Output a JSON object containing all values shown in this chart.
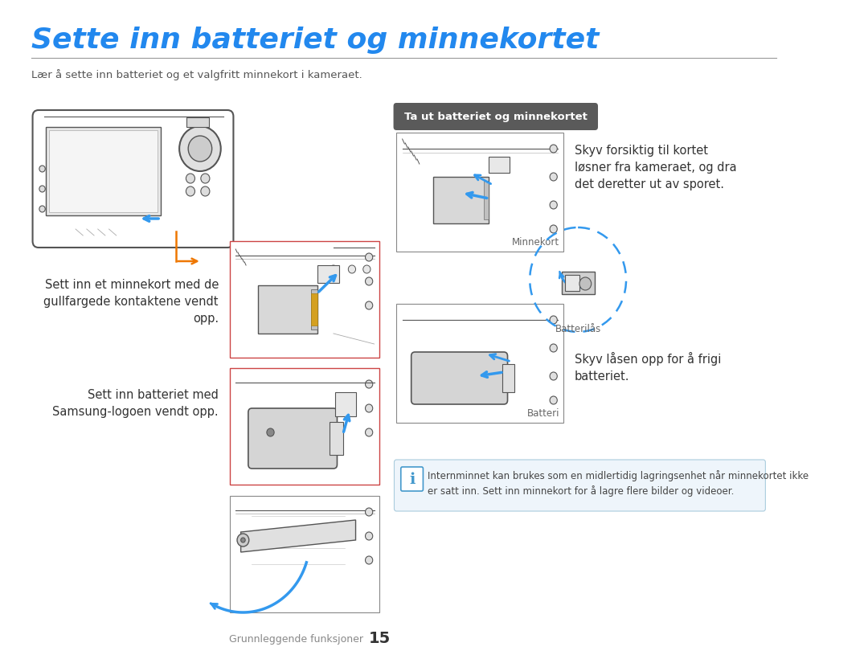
{
  "title": "Sette inn batteriet og minnekortet",
  "subtitle": "Lær å sette inn batteriet og et valgfritt minnekort i kameraet.",
  "title_color": "#2288EE",
  "subtitle_color": "#555555",
  "separator_color": "#999999",
  "bg_color": "#ffffff",
  "body_text_color": "#333333",
  "label_color": "#666666",
  "section2_label": "Ta ut batteriet og minnekortet",
  "section2_label_bg": "#5a5a5a",
  "section2_label_text": "#ffffff",
  "text_left1": "Sett inn et minnekort med de\ngullfargede kontaktene vendt\nopp.",
  "text_left2": "Sett inn batteriet med\nSamsung-logoen vendt opp.",
  "text_right1": "Skyv forsiktig til kortet\nløsner fra kameraet, og dra\ndet deretter ut av sporet.",
  "text_right2": "Skyv låsen opp for å frigi\nbatteriet.",
  "label_minnekort": "Minnekort",
  "label_batterilås": "Batterilås",
  "label_batteri": "Batteri",
  "note_text": "Internminnet kan brukes som en midlertidig lagringsenhet når minnekortet ikke\ner satt inn. Sett inn minnekort for å lagre flere bilder og videoer.",
  "note_icon_color": "#4499CC",
  "note_bg": "#eef5fb",
  "note_border": "#aaccdd",
  "footer_text": "Grunnleggende funksjoner",
  "footer_number": "15",
  "footer_color": "#888888",
  "blue_arrow": "#3399EE",
  "orange_arrow": "#EE7700",
  "draw_color": "#555555",
  "draw_light": "#cccccc",
  "draw_border": "#888888"
}
